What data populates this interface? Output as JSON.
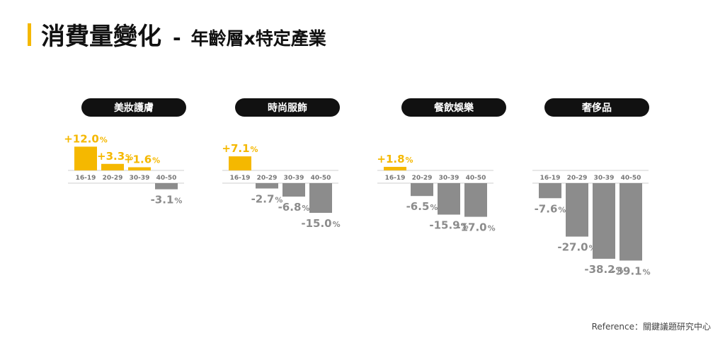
{
  "title": {
    "main": "消費量變化",
    "separator": "-",
    "subtitle": "年齡層x特定產業"
  },
  "reference": "Reference：關鍵議題研究中心",
  "colors": {
    "accent": "#f5b800",
    "positive": "#f5b800",
    "negative": "#8c8c8c",
    "pill_bg": "#111111"
  },
  "chart_data": [
    {
      "type": "bar",
      "title": "美妝護膚",
      "categories": [
        "16-19",
        "20-29",
        "30-39",
        "40-50"
      ],
      "values": [
        12.0,
        3.3,
        1.6,
        -3.1
      ],
      "labels": [
        "+12.0",
        "+3.3",
        "+1.6",
        "-3.1"
      ],
      "unit": "%"
    },
    {
      "type": "bar",
      "title": "時尚服飾",
      "categories": [
        "16-19",
        "20-29",
        "30-39",
        "40-50"
      ],
      "values": [
        7.1,
        -2.7,
        -6.8,
        -15.0
      ],
      "labels": [
        "+7.1",
        "-2.7",
        "-6.8",
        "-15.0"
      ],
      "unit": "%"
    },
    {
      "type": "bar",
      "title": "餐飲娛樂",
      "categories": [
        "16-19",
        "20-29",
        "30-39",
        "40-50"
      ],
      "values": [
        1.8,
        -6.5,
        -15.9,
        -17.0
      ],
      "labels": [
        "+1.8",
        "-6.5",
        "-15.9",
        "-17.0"
      ],
      "unit": "%"
    },
    {
      "type": "bar",
      "title": "奢侈品",
      "categories": [
        "16-19",
        "20-29",
        "30-39",
        "40-50"
      ],
      "values": [
        -7.6,
        -27.0,
        -38.2,
        -39.1
      ],
      "labels": [
        "-7.6",
        "-27.0",
        "-38.2",
        "-39.1"
      ],
      "unit": "%"
    }
  ]
}
